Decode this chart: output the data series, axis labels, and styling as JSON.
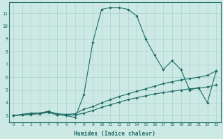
{
  "xlabel": "Humidex (Indice chaleur)",
  "xlim": [
    -0.5,
    23.5
  ],
  "ylim": [
    2.5,
    11.85
  ],
  "background_color": "#cce9e4",
  "grid_color": "#aad4ce",
  "line_color": "#1d6b65",
  "line1_x": [
    0,
    1,
    2,
    3,
    4,
    5,
    6,
    7,
    8,
    9,
    10,
    11,
    12,
    13,
    14,
    15,
    16,
    17,
    18,
    19,
    20,
    21,
    22,
    23
  ],
  "line1_y": [
    3.0,
    3.1,
    3.2,
    3.2,
    3.35,
    3.1,
    3.0,
    2.85,
    4.65,
    8.7,
    11.3,
    11.45,
    11.45,
    11.3,
    10.8,
    9.0,
    7.75,
    6.6,
    7.3,
    6.6,
    5.0,
    5.2,
    4.0,
    6.5
  ],
  "line2_x": [
    0,
    1,
    2,
    3,
    4,
    5,
    6,
    7,
    8,
    9,
    10,
    11,
    12,
    13,
    14,
    15,
    16,
    17,
    18,
    19,
    20,
    21,
    22,
    23
  ],
  "line2_y": [
    3.0,
    3.1,
    3.15,
    3.2,
    3.3,
    3.15,
    3.1,
    3.15,
    3.5,
    3.7,
    4.0,
    4.25,
    4.5,
    4.7,
    4.9,
    5.1,
    5.3,
    5.5,
    5.65,
    5.8,
    5.9,
    6.0,
    6.15,
    6.5
  ],
  "line3_x": [
    0,
    1,
    2,
    3,
    4,
    5,
    6,
    7,
    8,
    9,
    10,
    11,
    12,
    13,
    14,
    15,
    16,
    17,
    18,
    19,
    20,
    21,
    22,
    23
  ],
  "line3_y": [
    3.0,
    3.05,
    3.1,
    3.15,
    3.25,
    3.05,
    3.05,
    3.05,
    3.2,
    3.4,
    3.65,
    3.85,
    4.05,
    4.25,
    4.4,
    4.55,
    4.7,
    4.8,
    4.9,
    5.0,
    5.1,
    5.15,
    5.25,
    5.4
  ],
  "yticks": [
    3,
    4,
    5,
    6,
    7,
    8,
    9,
    10,
    11
  ],
  "xticks": [
    0,
    1,
    2,
    3,
    4,
    5,
    6,
    7,
    8,
    9,
    10,
    11,
    12,
    13,
    14,
    15,
    16,
    17,
    18,
    19,
    20,
    21,
    22,
    23
  ]
}
